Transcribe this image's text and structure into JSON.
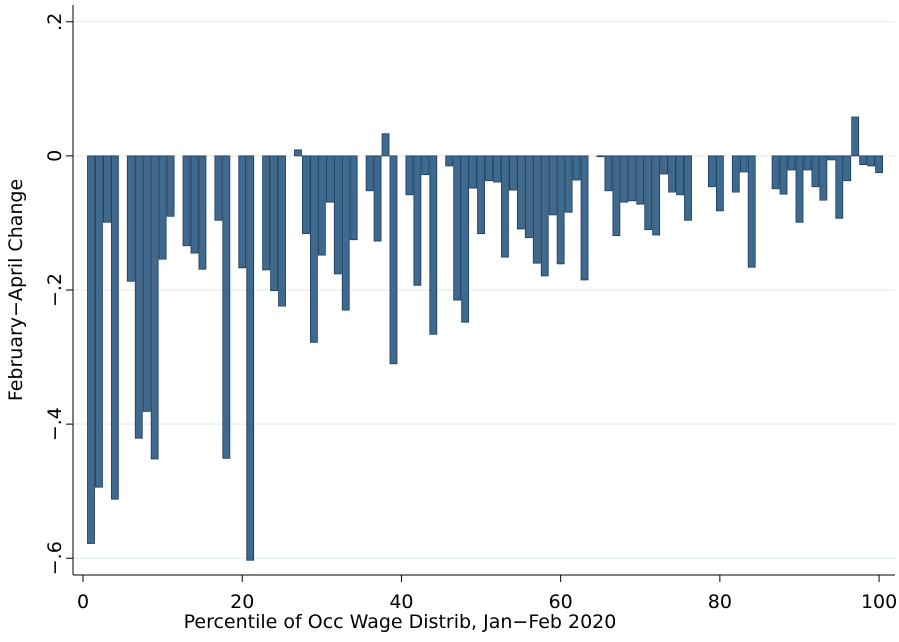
{
  "chart_data": {
    "type": "bar",
    "x_label": "Percentile of Occ Wage Distrib, Jan−Feb 2020",
    "y_label": "February−April Change",
    "x": [
      1,
      2,
      3,
      4,
      6,
      7,
      8,
      9,
      10,
      11,
      13,
      14,
      15,
      17,
      18,
      20,
      21,
      23,
      24,
      25,
      27,
      28,
      29,
      30,
      31,
      32,
      33,
      34,
      36,
      37,
      38,
      39,
      41,
      42,
      43,
      44,
      46,
      47,
      48,
      49,
      50,
      51,
      52,
      53,
      54,
      55,
      56,
      57,
      58,
      59,
      60,
      61,
      62,
      63,
      65,
      66,
      67,
      68,
      69,
      70,
      71,
      72,
      73,
      74,
      75,
      76,
      79,
      80,
      82,
      83,
      84,
      87,
      88,
      89,
      90,
      91,
      92,
      93,
      94,
      95,
      96,
      97,
      98,
      99,
      100
    ],
    "values": [
      -0.578,
      -0.494,
      -0.099,
      -0.512,
      -0.187,
      -0.421,
      -0.381,
      -0.452,
      -0.154,
      -0.09,
      -0.134,
      -0.145,
      -0.169,
      -0.096,
      -0.451,
      -0.167,
      -0.603,
      -0.17,
      -0.201,
      -0.224,
      0.009,
      -0.116,
      -0.278,
      -0.148,
      -0.069,
      -0.176,
      -0.23,
      -0.125,
      -0.052,
      -0.127,
      0.033,
      -0.31,
      -0.058,
      -0.193,
      -0.028,
      -0.266,
      -0.015,
      -0.215,
      -0.248,
      -0.048,
      -0.116,
      -0.037,
      -0.039,
      -0.151,
      -0.051,
      -0.109,
      -0.122,
      -0.16,
      -0.179,
      -0.088,
      -0.161,
      -0.084,
      -0.036,
      -0.185,
      -0.001,
      -0.052,
      -0.119,
      -0.069,
      -0.067,
      -0.072,
      -0.11,
      -0.118,
      -0.027,
      -0.054,
      -0.058,
      -0.096,
      -0.046,
      -0.082,
      -0.054,
      -0.024,
      -0.166,
      -0.049,
      -0.057,
      -0.021,
      -0.099,
      -0.021,
      -0.046,
      -0.066,
      -0.006,
      -0.093,
      -0.037,
      0.058,
      -0.013,
      -0.015,
      -0.025
    ],
    "color": "#3e6a90",
    "xlim": [
      -1.26,
      102
    ],
    "ylim": [
      -0.625,
      0.225
    ],
    "xticks": [
      0,
      20,
      40,
      60,
      80,
      100
    ],
    "yticks": [
      {
        "value": 0.2,
        "label": ".2"
      },
      0,
      {
        "value": -0.2,
        "label": "−.2"
      },
      {
        "value": -0.4,
        "label": "−.4"
      },
      {
        "value": -0.6,
        "label": "−.6"
      }
    ],
    "grid": true
  }
}
